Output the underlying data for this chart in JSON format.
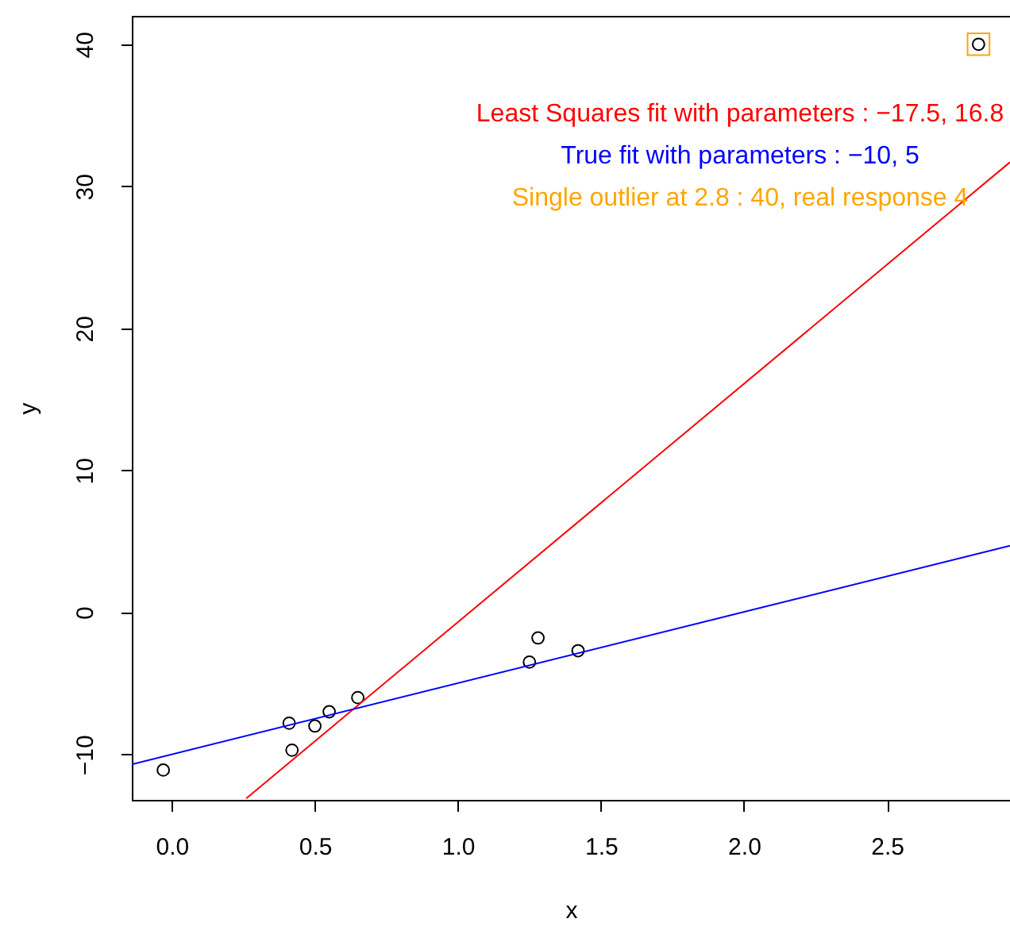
{
  "chart_data": {
    "type": "scatter",
    "xlabel": "x",
    "ylabel": "y",
    "xlim": [
      -0.14,
      2.93
    ],
    "ylim": [
      -13.2,
      42.0
    ],
    "xticks": [
      {
        "value": 0,
        "label": "0.0"
      },
      0.5,
      {
        "value": 1,
        "label": "1.0"
      },
      1.5,
      {
        "value": 2,
        "label": "2.0"
      },
      2.5
    ],
    "yticks": [
      -10,
      0,
      10,
      20,
      30,
      40
    ],
    "grid": false,
    "legend": "top right",
    "series": [
      {
        "marker": "circle",
        "color": "#000000",
        "x": [
          -0.03,
          0.41,
          0.42,
          0.5,
          0.55,
          0.65,
          1.25,
          1.28,
          1.42,
          2.82
        ],
        "values": [
          -11.1,
          -7.8,
          -9.7,
          -8.0,
          -7.0,
          -6.0,
          -3.5,
          -1.8,
          -2.7,
          40
        ]
      },
      {
        "type": "line",
        "name": "Least Squares fit with parameters : −17.5, 16.8",
        "color": "#ff0000",
        "line_style": "solid",
        "marker": "none",
        "x": [
          0.26,
          2.93
        ],
        "values": [
          -13.1,
          31.7
        ]
      },
      {
        "type": "line",
        "name": "True fit with parameters : −10, 5",
        "color": "#0000ff",
        "line_style": "solid",
        "marker": "none",
        "x": [
          -0.14,
          2.93
        ],
        "values": [
          -10.7,
          4.7
        ]
      },
      {
        "name": "Single outlier at 2.8 : 40, real response 4",
        "marker": "square",
        "color": "#ffa500",
        "x": [
          2.82
        ],
        "values": [
          40
        ]
      }
    ]
  }
}
